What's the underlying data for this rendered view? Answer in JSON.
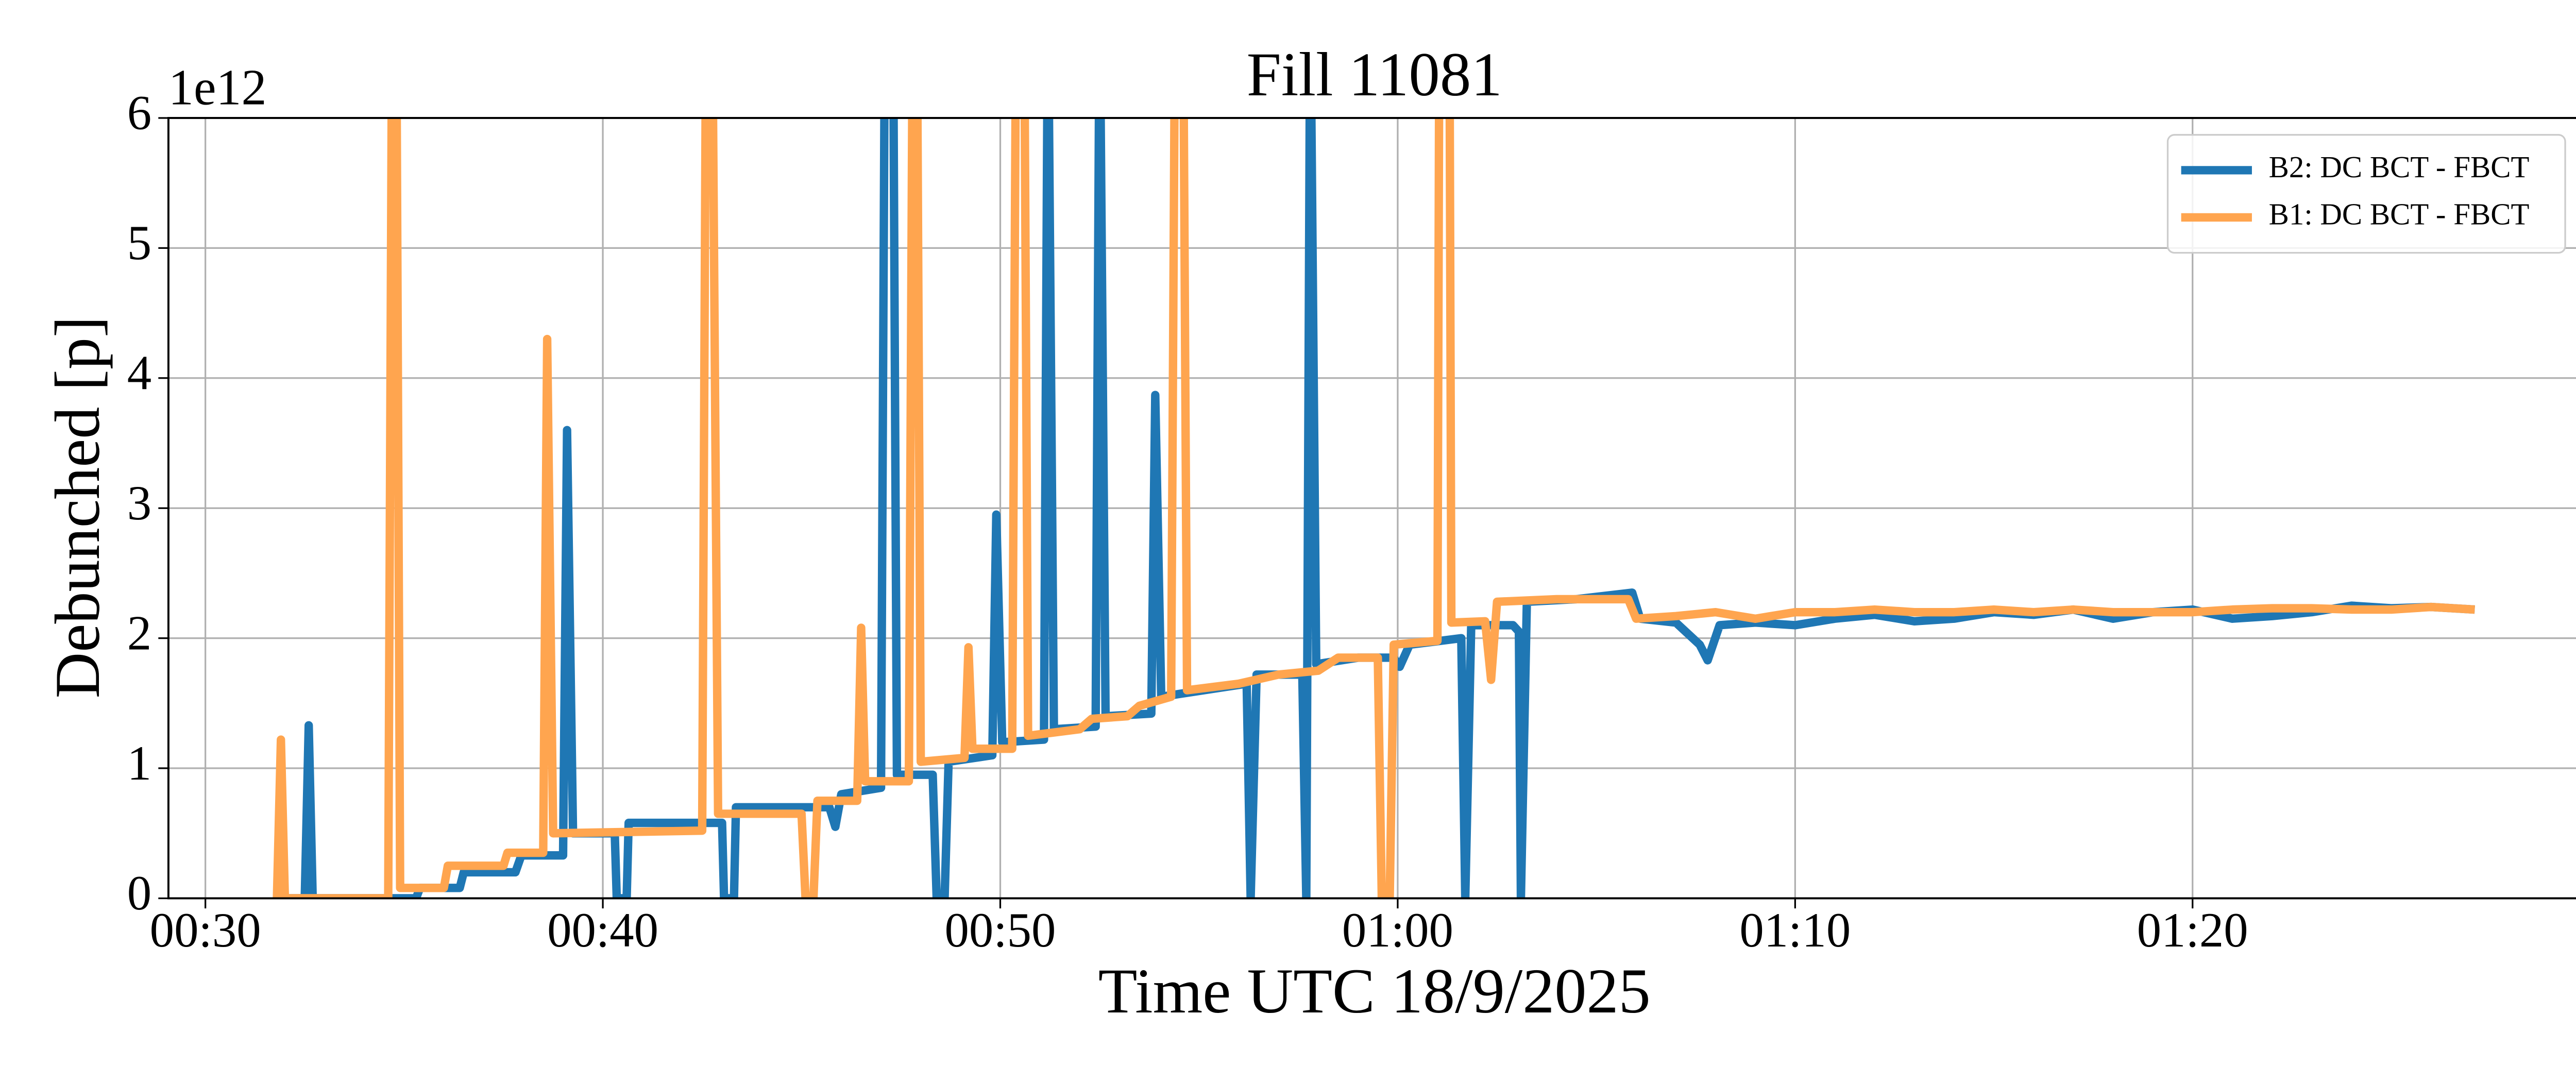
{
  "chart_data": {
    "type": "line",
    "title": "Fill 11081",
    "xlabel": "Time UTC 18/9/2025",
    "ylabel": "Debunched [p]",
    "y_offset_label": "1e12",
    "xlim": [
      29.07,
      89.8
    ],
    "ylim": [
      0,
      6
    ],
    "xticks": [
      {
        "value": 30,
        "label": "00:30"
      },
      {
        "value": 40,
        "label": "00:40"
      },
      {
        "value": 50,
        "label": "00:50"
      },
      {
        "value": 60,
        "label": "01:00"
      },
      {
        "value": 70,
        "label": "01:10"
      },
      {
        "value": 80,
        "label": "01:20"
      }
    ],
    "yticks": [
      0,
      1,
      2,
      3,
      4,
      5,
      6
    ],
    "grid": true,
    "legend": "upper right",
    "series": [
      {
        "name": "B2: DC BCT - FBCT",
        "color": "#1f77b4",
        "x": [
          31.9,
          32.5,
          32.6,
          32.7,
          35.3,
          35.4,
          36.4,
          36.5,
          37.8,
          37.95,
          39.0,
          39.1,
          39.25,
          40.3,
          40.35,
          40.6,
          40.65,
          43.0,
          43.05,
          43.3,
          43.35,
          45.7,
          45.85,
          46.0,
          47.0,
          47.1,
          47.3,
          47.4,
          48.3,
          48.4,
          48.6,
          48.7,
          49.8,
          49.9,
          50.05,
          51.1,
          51.2,
          51.35,
          52.4,
          52.5,
          52.65,
          53.8,
          53.9,
          54.05,
          56.2,
          56.3,
          56.45,
          57.6,
          57.7,
          57.8,
          57.95,
          59.0,
          59.9,
          60.05,
          60.3,
          61.6,
          61.7,
          61.85,
          62.9,
          63.05,
          63.1,
          63.25,
          64.5,
          65.9,
          66.1,
          67.0,
          67.6,
          67.8,
          68.1,
          69.0,
          70.0,
          71.0,
          72.0,
          73.0,
          74.0,
          75.0,
          76.0,
          77.0,
          78.0,
          79.0,
          80.0,
          81.0,
          82.0,
          83.0,
          84.0,
          85.0,
          86.0,
          87.1
        ],
        "values": [
          0,
          0,
          1.33,
          0,
          0,
          0.08,
          0.08,
          0.2,
          0.2,
          0.33,
          0.33,
          3.6,
          0.5,
          0.5,
          0,
          0,
          0.58,
          0.58,
          0,
          0,
          0.7,
          0.7,
          0.55,
          0.8,
          0.85,
          7,
          7,
          0.95,
          0.95,
          0,
          0,
          1.05,
          1.1,
          2.95,
          1.2,
          1.22,
          7,
          1.3,
          1.32,
          7,
          1.4,
          1.42,
          3.87,
          1.55,
          1.65,
          0,
          1.72,
          1.72,
          0,
          7,
          1.8,
          1.85,
          1.85,
          1.78,
          1.95,
          2.0,
          0,
          2.1,
          2.1,
          2.05,
          0,
          2.28,
          2.3,
          2.35,
          2.15,
          2.12,
          1.95,
          1.83,
          2.1,
          2.12,
          2.1,
          2.15,
          2.18,
          2.13,
          2.15,
          2.2,
          2.18,
          2.22,
          2.15,
          2.2,
          2.22,
          2.15,
          2.17,
          2.2,
          2.25,
          2.23,
          2.24,
          2.22
        ]
      },
      {
        "name": "B1: DC BCT - FBCT",
        "color": "#ffa54f",
        "x": [
          31.8,
          31.9,
          32.0,
          34.6,
          34.7,
          34.8,
          34.9,
          36.0,
          36.1,
          37.5,
          37.6,
          38.5,
          38.6,
          38.75,
          42.5,
          42.6,
          42.75,
          42.9,
          45.0,
          45.1,
          45.3,
          45.4,
          46.4,
          46.5,
          46.6,
          47.7,
          47.8,
          47.9,
          48.0,
          49.1,
          49.2,
          49.3,
          50.3,
          50.4,
          50.6,
          50.7,
          52.0,
          52.3,
          53.2,
          53.5,
          54.3,
          54.4,
          54.6,
          54.7,
          56.0,
          57.0,
          58.0,
          58.5,
          59.5,
          59.6,
          59.8,
          59.9,
          61.0,
          61.05,
          61.3,
          61.35,
          62.2,
          62.35,
          62.5,
          64.0,
          65.8,
          66.0,
          67.0,
          68.0,
          69.0,
          70.0,
          71.0,
          72.0,
          73.0,
          74.0,
          75.0,
          76.0,
          77.0,
          78.0,
          79.0,
          80.0,
          81.0,
          82.0,
          83.0,
          84.0,
          85.0,
          86.0,
          87.1
        ],
        "values": [
          0,
          1.22,
          0,
          0,
          7,
          7,
          0.08,
          0.08,
          0.25,
          0.25,
          0.35,
          0.35,
          4.3,
          0.5,
          0.52,
          7,
          7,
          0.65,
          0.65,
          0,
          0,
          0.75,
          0.75,
          2.08,
          0.9,
          0.9,
          7,
          7,
          1.05,
          1.08,
          1.93,
          1.15,
          1.15,
          7,
          7,
          1.25,
          1.3,
          1.38,
          1.4,
          1.48,
          1.55,
          7,
          7,
          1.6,
          1.65,
          1.72,
          1.75,
          1.85,
          1.85,
          0,
          0,
          1.95,
          1.98,
          7,
          7,
          2.12,
          2.13,
          1.68,
          2.28,
          2.3,
          2.3,
          2.15,
          2.17,
          2.2,
          2.15,
          2.2,
          2.2,
          2.22,
          2.2,
          2.2,
          2.22,
          2.2,
          2.22,
          2.2,
          2.2,
          2.2,
          2.22,
          2.23,
          2.23,
          2.22,
          2.22,
          2.24,
          2.22
        ]
      }
    ]
  }
}
